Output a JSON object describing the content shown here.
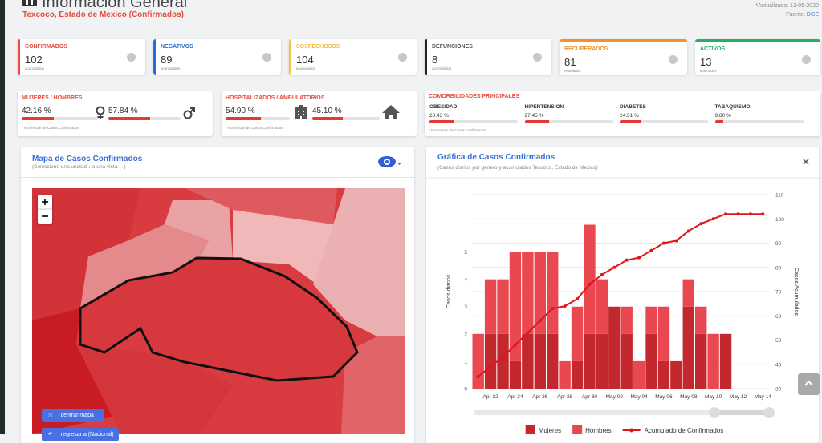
{
  "header": {
    "title": "Información General",
    "subtitle": "Texcoco, Estado de Mexico (Confirmados)",
    "updated": "*Actualizado: 13-05-2020",
    "source_label": "Fuente:",
    "source": "DGE"
  },
  "cards": [
    {
      "label": "CONFIRMADOS",
      "value": 102,
      "note": "acumulados"
    },
    {
      "label": "NEGATIVOS",
      "value": 89,
      "note": "acumulados"
    },
    {
      "label": "SOSPECHOSOS",
      "value": 104,
      "note": "acumulados"
    },
    {
      "label": "DEFUNCIONES",
      "value": 8,
      "note": "acumulados"
    },
    {
      "label": "RECUPERADOS",
      "value": 81,
      "note": "estimados"
    },
    {
      "label": "ACTIVOS",
      "value": 13,
      "note": "estimados"
    }
  ],
  "gender": {
    "title": "MUJERES / HOMBRES",
    "items": [
      {
        "value": 42.16,
        "label": "42.16 %"
      },
      {
        "value": 57.84,
        "label": "57.84 %"
      }
    ],
    "note": "* Porcentaje de Casos Confirmados"
  },
  "hospital": {
    "title": "HOSPITALIZADOS / AMBULATORIOS",
    "items": [
      {
        "value": 54.9,
        "label": "54.90 %"
      },
      {
        "value": 45.1,
        "label": "45.10 %"
      }
    ],
    "note": "* Porcentaje de Casos Confirmados"
  },
  "comorbidities": {
    "title": "COMORBILIDADES PRINCIPALES",
    "items": [
      {
        "name": "OBESIDAD",
        "value": 28.43,
        "label": "28.43 %"
      },
      {
        "name": "HIPERTENSION",
        "value": 27.45,
        "label": "27.45 %"
      },
      {
        "name": "DIABETES",
        "value": 24.51,
        "label": "24.51 %"
      },
      {
        "name": "TABAQUISMO",
        "value": 9.8,
        "label": "9.80 %"
      }
    ],
    "note": "* Porcentaje de Casos Confirmados"
  },
  "map": {
    "title": "Mapa de Casos Confirmados",
    "subtitle": "(Seleccione una unidad ↓ o una vista →)",
    "buttons": [
      "centrar mapa",
      "regresar a (Nacional)"
    ]
  },
  "chart_data": {
    "type": "bar",
    "stacked": true,
    "title": "Gráfica de Casos Confirmados",
    "subtitle": "(Casos diarios por género y acumulados Texcoco, Estado de Mexico)",
    "ylabel": "Casos diarios",
    "y2label": "Casos Acumulados",
    "categories": [
      null,
      "Apr 22",
      null,
      "Apr 24",
      null,
      "Apr 26",
      null,
      "Apr 28",
      null,
      "Apr 30",
      null,
      "May 02",
      null,
      "May 04",
      null,
      "May 06",
      null,
      "May 08",
      null,
      "May 10",
      null,
      "May 12",
      null,
      "May 14"
    ],
    "series": [
      {
        "name": "Mujeres",
        "color": "#c3282e",
        "values": [
          0,
          2,
          2,
          1,
          2,
          2,
          2,
          0,
          1,
          2,
          2,
          3,
          2,
          0,
          2,
          1,
          1,
          3,
          2,
          0,
          2,
          0,
          0,
          0
        ]
      },
      {
        "name": "Hombres",
        "color": "#ea4850",
        "values": [
          2,
          2,
          2,
          4,
          3,
          3,
          3,
          1,
          2,
          4,
          2,
          0,
          1,
          1,
          1,
          2,
          0,
          1,
          1,
          2,
          0,
          0,
          0,
          0
        ]
      },
      {
        "name": "Acumulado de Confirmados",
        "color": "#e0141b",
        "type": "line",
        "axis": "y2",
        "values": [
          35,
          39,
          43,
          48,
          53,
          58,
          63,
          64,
          67,
          73,
          77,
          80,
          83,
          84,
          87,
          90,
          91,
          95,
          98,
          100,
          102,
          102,
          102,
          102
        ]
      }
    ],
    "ylim": [
      0,
      7.1
    ],
    "yticks": [
      0,
      1,
      2,
      3,
      4,
      5
    ],
    "y2lim": [
      30,
      110
    ],
    "y2ticks": [
      30,
      40,
      50,
      60,
      70,
      80,
      90,
      100,
      110
    ],
    "grid": true,
    "legend": "bottom"
  }
}
